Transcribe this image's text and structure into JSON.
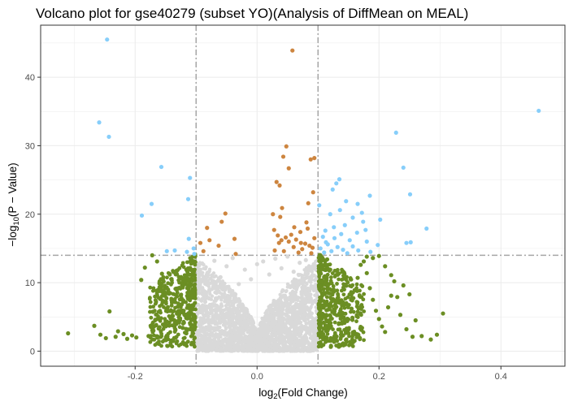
{
  "chart_data": {
    "type": "scatter",
    "title": "Volcano plot for gse40279 (subset YO)(Analysis of DiffMean on MEAL)",
    "xlabel": {
      "pre": "log",
      "sub": "2",
      "post": "(Fold  Change)"
    },
    "ylabel": {
      "pre": "−log",
      "sub": "10",
      "post": "(P − Value)"
    },
    "xlim": [
      -0.355,
      0.505
    ],
    "ylim": [
      -2.2,
      47.6
    ],
    "xticks": [
      -0.2,
      0.0,
      0.2,
      0.4
    ],
    "xtick_labels": [
      "-0.2",
      "0.0",
      "0.2",
      "0.4"
    ],
    "yticks": [
      0,
      10,
      20,
      30,
      40
    ],
    "ytick_labels": [
      "0",
      "10",
      "20",
      "30",
      "40"
    ],
    "thresholds": {
      "x": [
        -0.1,
        0.1
      ],
      "y": 14
    },
    "grid": true,
    "legend": "none",
    "colors": {
      "not_significant": "#d9d9d9",
      "fold_change_only": "#6b8e23",
      "pvalue_only": "#cd853f",
      "both": "#87cefa",
      "threshold_line": "#a6a6a6",
      "grid": "#ebebeb",
      "panel_border": "#333333"
    },
    "series": [
      {
        "key": "grey",
        "points": [
          [
            -0.09,
            12.8
          ],
          [
            -0.08,
            11.5
          ],
          [
            -0.07,
            13.2
          ],
          [
            -0.06,
            10.8
          ],
          [
            -0.05,
            12.4
          ],
          [
            -0.04,
            13.6
          ],
          [
            -0.03,
            9.8
          ],
          [
            -0.02,
            11.9
          ],
          [
            -0.01,
            10.5
          ],
          [
            0.0,
            12.7
          ],
          [
            0.01,
            13.1
          ],
          [
            0.02,
            11.2
          ],
          [
            0.03,
            13.5
          ],
          [
            0.04,
            12.1
          ],
          [
            0.05,
            13.8
          ],
          [
            0.06,
            11.6
          ],
          [
            0.07,
            12.9
          ],
          [
            0.08,
            13.3
          ],
          [
            0.09,
            10.9
          ],
          [
            -0.095,
            8.5
          ],
          [
            0.095,
            9.1
          ],
          [
            -0.085,
            7.2
          ],
          [
            0.085,
            7.8
          ],
          [
            -0.075,
            6.1
          ],
          [
            0.075,
            6.6
          ],
          [
            -0.065,
            5.2
          ],
          [
            0.065,
            5.5
          ],
          [
            -0.055,
            4.3
          ],
          [
            0.055,
            4.6
          ],
          [
            -0.045,
            3.5
          ],
          [
            0.045,
            3.8
          ],
          [
            -0.035,
            2.8
          ],
          [
            0.035,
            3.0
          ],
          [
            -0.025,
            2.0
          ],
          [
            0.025,
            2.3
          ],
          [
            -0.015,
            1.4
          ],
          [
            0.015,
            1.6
          ],
          [
            -0.005,
            0.8
          ],
          [
            0.005,
            0.9
          ],
          [
            -0.098,
            1.5
          ],
          [
            0.098,
            1.8
          ],
          [
            -0.092,
            3.2
          ],
          [
            0.092,
            3.6
          ],
          [
            -0.088,
            4.8
          ],
          [
            0.088,
            5.1
          ],
          [
            -0.082,
            2.4
          ],
          [
            0.082,
            2.7
          ],
          [
            -0.078,
            0.9
          ],
          [
            0.078,
            1.1
          ]
        ]
      },
      {
        "key": "green",
        "points": [
          [
            -0.31,
            2.6
          ],
          [
            -0.267,
            3.7
          ],
          [
            -0.257,
            2.4
          ],
          [
            -0.248,
            1.9
          ],
          [
            -0.242,
            5.8
          ],
          [
            -0.232,
            2.1
          ],
          [
            -0.228,
            2.9
          ],
          [
            -0.219,
            2.5
          ],
          [
            -0.213,
            1.8
          ],
          [
            -0.205,
            2.3
          ],
          [
            -0.198,
            2.0
          ],
          [
            -0.19,
            10.4
          ],
          [
            -0.184,
            12.2
          ],
          [
            -0.178,
            2.2
          ],
          [
            -0.17,
            3.0
          ],
          [
            -0.16,
            3.5
          ],
          [
            -0.15,
            4.2
          ],
          [
            -0.14,
            4.8
          ],
          [
            -0.13,
            6.5
          ],
          [
            -0.125,
            8.1
          ],
          [
            -0.118,
            10.2
          ],
          [
            -0.112,
            9.3
          ],
          [
            -0.108,
            12.8
          ],
          [
            -0.104,
            11.6
          ],
          [
            -0.172,
            14.0
          ],
          [
            -0.164,
            13.1
          ],
          [
            -0.156,
            11.3
          ],
          [
            -0.146,
            9.0
          ],
          [
            -0.136,
            7.2
          ],
          [
            -0.128,
            5.6
          ],
          [
            -0.122,
            3.4
          ],
          [
            -0.116,
            2.6
          ],
          [
            -0.11,
            4.1
          ],
          [
            -0.106,
            6.3
          ],
          [
            -0.102,
            8.4
          ],
          [
            0.102,
            9.6
          ],
          [
            0.106,
            12.1
          ],
          [
            0.11,
            10.8
          ],
          [
            0.115,
            13.4
          ],
          [
            0.12,
            11.9
          ],
          [
            0.125,
            8.7
          ],
          [
            0.13,
            7.1
          ],
          [
            0.135,
            5.5
          ],
          [
            0.14,
            4.2
          ],
          [
            0.145,
            3.1
          ],
          [
            0.15,
            2.6
          ],
          [
            0.155,
            6.2
          ],
          [
            0.16,
            8.9
          ],
          [
            0.165,
            10.7
          ],
          [
            0.17,
            12.6
          ],
          [
            0.175,
            13.1
          ],
          [
            0.18,
            11.4
          ],
          [
            0.185,
            9.2
          ],
          [
            0.19,
            7.5
          ],
          [
            0.195,
            5.9
          ],
          [
            0.2,
            4.7
          ],
          [
            0.205,
            3.6
          ],
          [
            0.21,
            2.8
          ],
          [
            0.215,
            6.4
          ],
          [
            0.22,
            8.1
          ],
          [
            0.225,
            10.2
          ],
          [
            0.23,
            7.9
          ],
          [
            0.24,
            9.6
          ],
          [
            0.25,
            8.3
          ],
          [
            0.26,
            4.5
          ],
          [
            0.27,
            2.2
          ],
          [
            0.18,
            13.8
          ],
          [
            0.19,
            13.6
          ],
          [
            0.2,
            13.9
          ],
          [
            0.21,
            12.4
          ],
          [
            0.22,
            11.1
          ],
          [
            0.235,
            5.3
          ],
          [
            0.245,
            3.2
          ],
          [
            0.255,
            2.1
          ],
          [
            0.285,
            1.7
          ],
          [
            0.295,
            2.4
          ],
          [
            0.305,
            5.5
          ],
          [
            0.107,
            2.0
          ],
          [
            0.113,
            1.6
          ],
          [
            0.121,
            1.9
          ],
          [
            0.131,
            1.5
          ],
          [
            0.141,
            2.3
          ]
        ]
      },
      {
        "key": "orange",
        "points": [
          [
            0.058,
            43.9
          ],
          [
            0.048,
            29.9
          ],
          [
            0.043,
            28.4
          ],
          [
            0.094,
            28.2
          ],
          [
            0.088,
            28.0
          ],
          [
            0.052,
            26.7
          ],
          [
            0.032,
            24.7
          ],
          [
            0.037,
            24.2
          ],
          [
            0.092,
            23.2
          ],
          [
            0.084,
            21.6
          ],
          [
            0.041,
            20.9
          ],
          [
            0.026,
            20.0
          ],
          [
            0.038,
            19.6
          ],
          [
            0.081,
            18.8
          ],
          [
            0.061,
            18.1
          ],
          [
            0.028,
            17.7
          ],
          [
            0.071,
            17.4
          ],
          [
            0.034,
            16.9
          ],
          [
            0.047,
            16.6
          ],
          [
            0.064,
            16.3
          ],
          [
            0.052,
            16.0
          ],
          [
            0.079,
            15.7
          ],
          [
            0.086,
            15.4
          ],
          [
            0.091,
            15.1
          ],
          [
            0.074,
            14.9
          ],
          [
            0.044,
            14.6
          ],
          [
            0.068,
            14.4
          ],
          [
            0.089,
            14.3
          ],
          [
            0.06,
            15.2
          ],
          [
            0.056,
            17.0
          ],
          [
            0.036,
            15.8
          ],
          [
            0.029,
            14.7
          ],
          [
            0.094,
            16.5
          ],
          [
            0.083,
            17.9
          ],
          [
            0.04,
            16.2
          ],
          [
            0.072,
            15.8
          ],
          [
            -0.093,
            15.8
          ],
          [
            -0.082,
            18.0
          ],
          [
            -0.052,
            20.1
          ],
          [
            -0.037,
            16.4
          ],
          [
            -0.035,
            14.2
          ],
          [
            -0.063,
            15.4
          ],
          [
            -0.088,
            14.6
          ],
          [
            -0.078,
            16.2
          ],
          [
            -0.058,
            18.9
          ]
        ]
      },
      {
        "key": "blue",
        "points": [
          [
            -0.246,
            45.5
          ],
          [
            -0.259,
            33.4
          ],
          [
            -0.243,
            31.3
          ],
          [
            -0.157,
            26.9
          ],
          [
            -0.11,
            25.3
          ],
          [
            -0.173,
            21.5
          ],
          [
            -0.189,
            19.8
          ],
          [
            -0.113,
            22.2
          ],
          [
            -0.112,
            16.4
          ],
          [
            -0.104,
            15.0
          ],
          [
            -0.115,
            14.5
          ],
          [
            -0.148,
            14.6
          ],
          [
            -0.135,
            14.7
          ],
          [
            -0.103,
            14.2
          ],
          [
            0.462,
            35.1
          ],
          [
            0.228,
            31.9
          ],
          [
            0.24,
            26.8
          ],
          [
            0.251,
            22.9
          ],
          [
            0.278,
            17.9
          ],
          [
            0.252,
            15.9
          ],
          [
            0.245,
            15.8
          ],
          [
            0.135,
            25.1
          ],
          [
            0.13,
            24.5
          ],
          [
            0.124,
            23.6
          ],
          [
            0.185,
            22.7
          ],
          [
            0.146,
            21.9
          ],
          [
            0.165,
            21.5
          ],
          [
            0.102,
            21.3
          ],
          [
            0.136,
            20.6
          ],
          [
            0.172,
            20.2
          ],
          [
            0.12,
            20.0
          ],
          [
            0.157,
            19.5
          ],
          [
            0.202,
            19.2
          ],
          [
            0.174,
            18.9
          ],
          [
            0.144,
            18.4
          ],
          [
            0.126,
            18.1
          ],
          [
            0.112,
            17.6
          ],
          [
            0.164,
            17.3
          ],
          [
            0.138,
            17.1
          ],
          [
            0.108,
            16.7
          ],
          [
            0.152,
            16.2
          ],
          [
            0.18,
            16.0
          ],
          [
            0.116,
            15.6
          ],
          [
            0.198,
            15.5
          ],
          [
            0.132,
            15.2
          ],
          [
            0.104,
            15.0
          ],
          [
            0.141,
            14.8
          ],
          [
            0.166,
            14.7
          ],
          [
            0.122,
            14.6
          ],
          [
            0.186,
            14.5
          ],
          [
            0.11,
            14.4
          ],
          [
            0.148,
            14.3
          ],
          [
            0.157,
            15.3
          ],
          [
            0.113,
            15.9
          ],
          [
            0.127,
            16.5
          ],
          [
            0.178,
            17.7
          ]
        ]
      }
    ]
  }
}
